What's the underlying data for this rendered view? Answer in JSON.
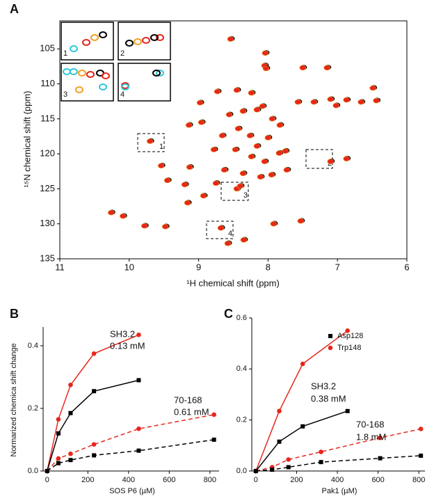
{
  "chart_data": [
    {
      "type": "scatter",
      "label": "A",
      "x_label": "¹H chemical shift (ppm)",
      "y_label": "¹⁵N chemical shift (ppm)",
      "xlim": [
        11,
        6
      ],
      "ylim": [
        135,
        101
      ],
      "xticks": [
        11,
        10,
        9,
        8,
        7,
        6
      ],
      "yticks": [
        105,
        110,
        115,
        120,
        125,
        130,
        135
      ],
      "color": "#e8261c",
      "x": [
        8.54,
        8.04,
        8.05,
        8.03,
        7.5,
        7.15,
        8.73,
        8.45,
        8.24,
        8.98,
        7.57,
        7.34,
        7.1,
        6.87,
        6.66,
        6.49,
        8.56,
        8.36,
        8.16,
        8.08,
        8.43,
        7.94,
        7.83,
        8.96,
        9.14,
        8.66,
        8.26,
        8.0,
        9.7,
        8.16,
        8.47,
        8.78,
        7.84,
        7.75,
        8.24,
        8.05,
        9.54,
        9.13,
        8.63,
        8.36,
        8.11,
        7.95,
        7.73,
        7.1,
        6.87,
        8.75,
        9.2,
        9.45,
        8.93,
        8.45,
        8.4,
        9.16,
        10.26,
        10.09,
        9.48,
        9.78,
        8.68,
        7.92,
        7.53,
        8.35,
        8.58,
        6.44,
        7.02
      ],
      "values": [
        103.6,
        105.6,
        107.4,
        107.8,
        107.7,
        107.7,
        111.1,
        110.9,
        111.3,
        112.7,
        112.6,
        112.6,
        112.2,
        112.3,
        112.6,
        110.6,
        114.4,
        113.9,
        113.7,
        113.2,
        116.4,
        115.0,
        115.9,
        115.5,
        115.9,
        117.4,
        117.4,
        117.7,
        118.2,
        118.9,
        119.4,
        119.4,
        119.9,
        119.6,
        120.4,
        121.1,
        121.7,
        121.9,
        122.3,
        122.8,
        123.3,
        123.0,
        122.3,
        121.1,
        120.7,
        124.2,
        124.4,
        123.8,
        126.0,
        125.0,
        124.6,
        127.0,
        128.4,
        128.9,
        130.4,
        130.3,
        130.6,
        130.0,
        129.6,
        132.3,
        132.8,
        112.4,
        113.1
      ],
      "insets": [
        "1",
        "2",
        "3",
        "4"
      ],
      "regions": [
        "1",
        "2",
        "3",
        "4"
      ]
    },
    {
      "type": "line",
      "label": "B",
      "x_label": "SOS P6 (µM)",
      "y_label": "Normarized chemica shift change",
      "xlim": [
        -20,
        845
      ],
      "ylim": [
        0,
        0.46
      ],
      "xticks": [
        0,
        200,
        400,
        600,
        800
      ],
      "yticks": [
        {
          "value": 0,
          "label": "0.0"
        },
        0.2,
        0.4
      ],
      "series": [
        {
          "color": "#e8261c",
          "marker": "circle",
          "dash": false,
          "x": [
            0,
            55,
            115,
            230,
            450
          ],
          "values": [
            0,
            0.165,
            0.275,
            0.375,
            0.435
          ]
        },
        {
          "color": "#000000",
          "marker": "square",
          "dash": false,
          "x": [
            0,
            55,
            115,
            230,
            450
          ],
          "values": [
            0,
            0.12,
            0.185,
            0.255,
            0.29
          ]
        },
        {
          "color": "#e8261c",
          "marker": "circle",
          "dash": true,
          "x": [
            0,
            55,
            115,
            230,
            450,
            820
          ],
          "values": [
            0,
            0.04,
            0.055,
            0.085,
            0.135,
            0.18
          ]
        },
        {
          "color": "#000000",
          "marker": "square",
          "dash": true,
          "x": [
            0,
            55,
            115,
            230,
            450,
            820
          ],
          "values": [
            0,
            0.025,
            0.035,
            0.05,
            0.065,
            0.1
          ]
        }
      ],
      "annotations": [
        "SH3.2",
        "0.13 mM",
        "70-168",
        "0.61 mM"
      ]
    },
    {
      "type": "line",
      "label": "C",
      "x_label": "Pak1 (µM)",
      "xlim": [
        -20,
        830
      ],
      "ylim": [
        0,
        0.6
      ],
      "xticks": [
        0,
        200,
        400,
        600,
        800
      ],
      "yticks": [
        {
          "value": 0,
          "label": "0.0"
        },
        0.2,
        0.4,
        0.6
      ],
      "legend": [
        {
          "name": "Asp128",
          "color": "#000000",
          "marker": "square"
        },
        {
          "name": "Trp148",
          "color": "#e8261c",
          "marker": "circle"
        }
      ],
      "series": [
        {
          "color": "#e8261c",
          "marker": "circle",
          "dash": false,
          "x": [
            0,
            115,
            230,
            450
          ],
          "values": [
            0,
            0.235,
            0.42,
            0.55
          ]
        },
        {
          "color": "#000000",
          "marker": "square",
          "dash": false,
          "x": [
            0,
            115,
            230,
            450
          ],
          "values": [
            0,
            0.115,
            0.175,
            0.235
          ]
        },
        {
          "color": "#e8261c",
          "marker": "circle",
          "dash": true,
          "x": [
            0,
            80,
            160,
            320,
            610,
            810
          ],
          "values": [
            0,
            0.015,
            0.045,
            0.075,
            0.13,
            0.165
          ]
        },
        {
          "color": "#000000",
          "marker": "square",
          "dash": true,
          "x": [
            0,
            80,
            160,
            320,
            610,
            810
          ],
          "values": [
            0,
            0.005,
            0.015,
            0.035,
            0.05,
            0.06
          ]
        }
      ],
      "annotations": [
        "SH3.2",
        "0.38 mM",
        "70-168",
        "1.8 mM"
      ]
    }
  ]
}
